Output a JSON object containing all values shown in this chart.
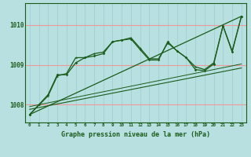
{
  "background_color": "#b8e0e0",
  "grid_color_h": "#ee9999",
  "grid_color_v": "#99cccc",
  "line_color": "#1a5c1a",
  "xlabel": "Graphe pression niveau de la mer (hPa)",
  "x_ticks": [
    0,
    1,
    2,
    3,
    4,
    5,
    6,
    7,
    8,
    9,
    10,
    11,
    12,
    13,
    14,
    15,
    16,
    17,
    18,
    19,
    20,
    21,
    22,
    23
  ],
  "y_ticks": [
    1008,
    1009,
    1010
  ],
  "ylim": [
    1007.55,
    1010.55
  ],
  "xlim": [
    -0.5,
    23.5
  ],
  "series1_x": [
    0,
    1,
    2,
    3,
    4,
    5,
    6,
    7,
    8,
    9,
    10,
    11,
    12,
    13,
    14,
    15,
    16,
    17,
    18,
    19,
    20,
    21,
    22,
    23
  ],
  "series1_y": [
    1007.75,
    1008.0,
    1008.25,
    1008.75,
    1008.75,
    1009.05,
    1009.18,
    1009.22,
    1009.28,
    1009.58,
    1009.62,
    1009.65,
    1009.38,
    1009.12,
    1009.12,
    1009.58,
    1009.35,
    1009.18,
    1008.88,
    1008.85,
    1009.02,
    1009.98,
    1009.32,
    1010.22
  ],
  "series2_x": [
    0,
    2,
    3,
    4,
    5,
    6,
    7,
    8,
    9,
    10,
    11,
    12,
    13,
    14,
    15,
    16,
    17,
    18,
    19,
    20,
    21,
    22,
    23
  ],
  "series2_y": [
    1007.75,
    1008.22,
    1008.72,
    1008.78,
    1009.18,
    1009.18,
    1009.28,
    1009.32,
    1009.58,
    1009.62,
    1009.68,
    1009.42,
    1009.15,
    1009.15,
    1009.55,
    1009.35,
    1009.18,
    1008.95,
    1008.88,
    1009.05,
    1009.98,
    1009.35,
    1010.22
  ],
  "trend1_x": [
    0,
    23
  ],
  "trend1_y": [
    1007.75,
    1010.22
  ],
  "trend2_x": [
    0,
    23
  ],
  "trend2_y": [
    1007.88,
    1008.92
  ],
  "trend3_x": [
    0,
    23
  ],
  "trend3_y": [
    1007.95,
    1009.02
  ]
}
